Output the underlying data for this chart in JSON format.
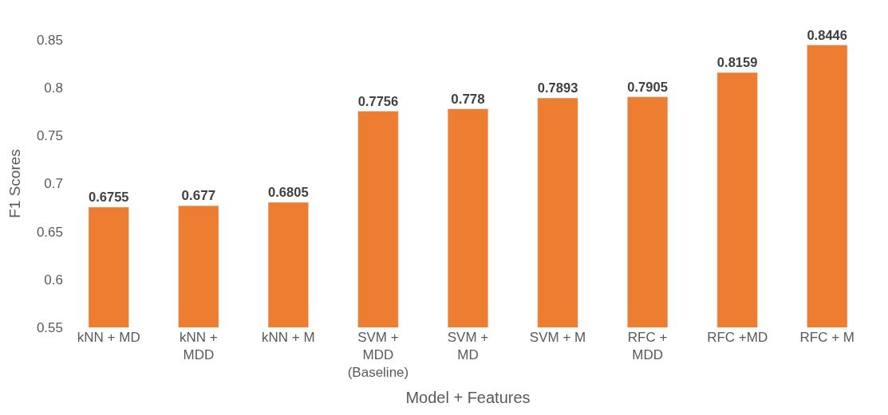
{
  "chart_data": {
    "type": "bar",
    "xlabel": "Model + Features",
    "ylabel": "F1 Scores",
    "categories": [
      "kNN + MD",
      "kNN +\nMDD",
      "kNN + M",
      "SVM +\nMDD\n(Baseline)",
      "SVM +\nMD",
      "SVM + M",
      "RFC +\nMDD",
      "RFC +MD",
      "RFC + M"
    ],
    "values": [
      0.6755,
      0.677,
      0.6805,
      0.7756,
      0.778,
      0.7893,
      0.7905,
      0.8159,
      0.8446
    ],
    "color": "#ed7d31",
    "data_labels": true,
    "legend": false,
    "ylim": [
      0.55,
      0.85
    ],
    "yticks": [
      0.55,
      0.6,
      0.65,
      0.7,
      0.75,
      0.8,
      0.85
    ]
  }
}
